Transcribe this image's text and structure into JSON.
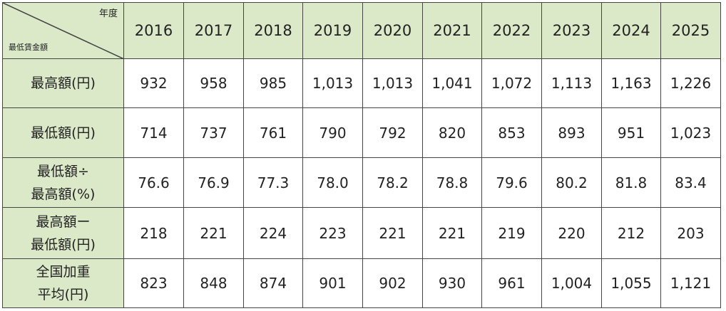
{
  "table": {
    "corner_top": "年度",
    "corner_bottom": "最低賃金額",
    "years": [
      "2016",
      "2017",
      "2018",
      "2019",
      "2020",
      "2021",
      "2022",
      "2023",
      "2024",
      "2025"
    ],
    "rows": [
      {
        "label": [
          "最高額(円)"
        ],
        "values": [
          "932",
          "958",
          "985",
          "1,013",
          "1,013",
          "1,041",
          "1,072",
          "1,113",
          "1,163",
          "1,226"
        ]
      },
      {
        "label": [
          "最低額(円)"
        ],
        "values": [
          "714",
          "737",
          "761",
          "790",
          "792",
          "820",
          "853",
          "893",
          "951",
          "1,023"
        ]
      },
      {
        "label": [
          "最低額÷",
          "最高額(%)"
        ],
        "values": [
          "76.6",
          "76.9",
          "77.3",
          "78.0",
          "78.2",
          "78.8",
          "79.6",
          "80.2",
          "81.8",
          "83.4"
        ]
      },
      {
        "label": [
          "最高額ー",
          "最低額(円)"
        ],
        "values": [
          "218",
          "221",
          "224",
          "223",
          "221",
          "221",
          "219",
          "220",
          "212",
          "203"
        ]
      },
      {
        "label": [
          "全国加重",
          "平均(円)"
        ],
        "values": [
          "823",
          "848",
          "874",
          "901",
          "902",
          "930",
          "961",
          "1,004",
          "1,055",
          "1,121"
        ]
      }
    ]
  },
  "colors": {
    "header_bg": "#dbe9c8",
    "border": "#444444"
  }
}
